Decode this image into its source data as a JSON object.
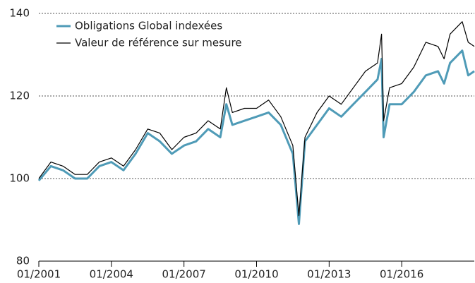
{
  "chart_data": {
    "type": "line",
    "x": [
      "01/2001",
      "07/2001",
      "01/2002",
      "07/2002",
      "01/2003",
      "07/2003",
      "01/2004",
      "07/2004",
      "01/2005",
      "07/2005",
      "01/2006",
      "07/2006",
      "01/2007",
      "07/2007",
      "01/2008",
      "07/2008",
      "10/2008",
      "01/2009",
      "07/2009",
      "01/2010",
      "07/2010",
      "01/2011",
      "07/2011",
      "10/2011",
      "01/2012",
      "07/2012",
      "01/2013",
      "07/2013",
      "01/2014",
      "07/2014",
      "01/2015",
      "03/2015",
      "04/2015",
      "07/2015",
      "01/2016",
      "07/2016",
      "01/2017",
      "07/2017",
      "10/2017",
      "01/2018",
      "07/2018",
      "10/2018",
      "01/2019"
    ],
    "series": [
      {
        "name": "Obligations Global indexées",
        "color": "#4f9bb7",
        "width": 3,
        "values": [
          99.5,
          103,
          102,
          100,
          100,
          103,
          104,
          102,
          106,
          111,
          109,
          106,
          108,
          109,
          112,
          110,
          118,
          113,
          114,
          115,
          116,
          113,
          106,
          89,
          109,
          113,
          117,
          115,
          118,
          121,
          124,
          129,
          110,
          118,
          118,
          121,
          125,
          126,
          123,
          128,
          131,
          125,
          126
        ]
      },
      {
        "name": "Valeur de référence sur mesure",
        "color": "#000000",
        "width": 1.2,
        "values": [
          100,
          104,
          103,
          101,
          101,
          104,
          105,
          103,
          107,
          112,
          111,
          107,
          110,
          111,
          114,
          112,
          122,
          116,
          117,
          117,
          119,
          115,
          108,
          91,
          110,
          116,
          120,
          118,
          122,
          126,
          128,
          135,
          114,
          122,
          123,
          127,
          133,
          132,
          129,
          135,
          138,
          133,
          132
        ]
      }
    ],
    "xlim": [
      "01/2001",
      "01/2019"
    ],
    "xticks": [
      "01/2001",
      "01/2004",
      "01/2007",
      "01/2010",
      "01/2013",
      "01/2016"
    ],
    "ylim": [
      80,
      140
    ],
    "yticks": [
      80,
      100,
      120,
      140
    ],
    "grid": true
  }
}
